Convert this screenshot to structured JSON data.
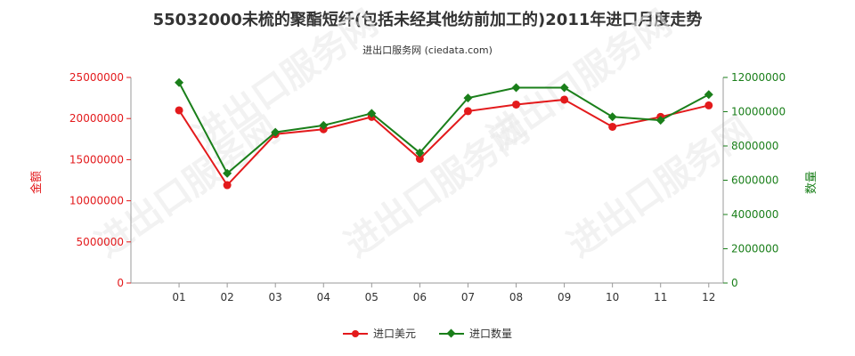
{
  "title": "55032000未梳的聚酯短纤(包括未经其他纺前加工的)2011年进口月度走势",
  "subtitle": "进出口服务网 (ciedata.com)",
  "watermark": "进出口服务网",
  "chart_data": {
    "type": "line",
    "categories": [
      "01",
      "02",
      "03",
      "04",
      "05",
      "06",
      "07",
      "08",
      "09",
      "10",
      "11",
      "12"
    ],
    "ylabel_left": "金额",
    "ylabel_right": "数量",
    "ylim_left": [
      0,
      25000000
    ],
    "ylim_right": [
      0,
      12000000
    ],
    "yticks_left": [
      "0",
      "5000000",
      "10000000",
      "15000000",
      "20000000",
      "25000000"
    ],
    "yticks_right": [
      "0",
      "2000000",
      "4000000",
      "6000000",
      "8000000",
      "10000000",
      "12000000"
    ],
    "grid": false,
    "legend_position": "bottom",
    "series": [
      {
        "name": "进口美元",
        "axis": "left",
        "color": "#e31a1c",
        "marker": "circle",
        "values": [
          21000000,
          11900000,
          18100000,
          18700000,
          20200000,
          15100000,
          20900000,
          21700000,
          22300000,
          19000000,
          20200000,
          21600000
        ]
      },
      {
        "name": "进口数量",
        "axis": "right",
        "color": "#1a7f1a",
        "marker": "diamond",
        "values": [
          11700000,
          6400000,
          8800000,
          9200000,
          9900000,
          7600000,
          10800000,
          11400000,
          11400000,
          9700000,
          9500000,
          11000000
        ]
      }
    ]
  },
  "colors": {
    "left_axis": "#e31a1c",
    "right_axis": "#1a7f1a",
    "title": "#333333"
  }
}
